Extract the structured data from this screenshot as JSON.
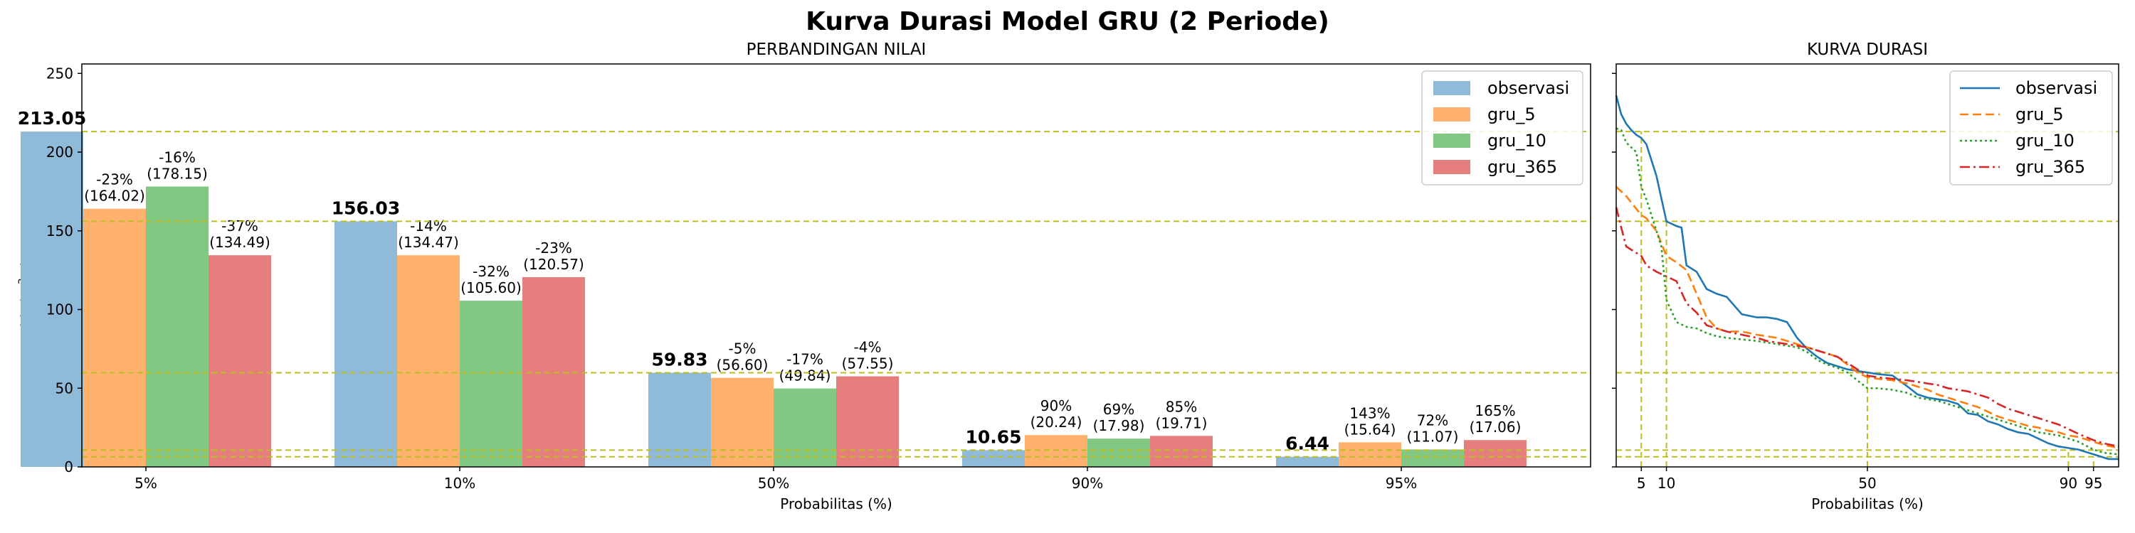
{
  "figure": {
    "title": "Kurva Durasi Model GRU (2 Periode)"
  },
  "colors": {
    "observasi": "#8fbbd9",
    "gru_5": "#ffb26e",
    "gru_10": "#82c782",
    "gru_365": "#e77e7e",
    "line_observasi": "#1f77b4",
    "line_gru_5": "#ff7f0e",
    "line_gru_10": "#2ca02c",
    "line_gru_365": "#d62728",
    "refline": "#bcbd22"
  },
  "chart_data": [
    {
      "type": "bar",
      "title": "PERBANDINGAN NILAI",
      "xlabel": "Probabilitas (%)",
      "ylabel": "Debit (m³/s)",
      "ylim": [
        0,
        256
      ],
      "yticks": [
        0,
        50,
        100,
        150,
        200,
        250
      ],
      "categories": [
        "5%",
        "10%",
        "50%",
        "90%",
        "95%"
      ],
      "legend": "top-right",
      "series": [
        {
          "name": "observasi",
          "values": [
            213.05,
            156.03,
            59.83,
            10.65,
            6.44
          ],
          "labels": [
            "213.05",
            "156.03",
            "59.83",
            "10.65",
            "6.44"
          ]
        },
        {
          "name": "gru_5",
          "values": [
            164.02,
            134.47,
            56.6,
            20.24,
            15.64
          ],
          "labels": [
            [
              "-23%",
              "(164.02)"
            ],
            [
              "-14%",
              "(134.47)"
            ],
            [
              "-5%",
              "(56.60)"
            ],
            [
              "90%",
              "(20.24)"
            ],
            [
              "143%",
              "(15.64)"
            ]
          ]
        },
        {
          "name": "gru_10",
          "values": [
            178.15,
            105.6,
            49.84,
            17.98,
            11.07
          ],
          "labels": [
            [
              "-16%",
              "(178.15)"
            ],
            [
              "-32%",
              "(105.60)"
            ],
            [
              "-17%",
              "(49.84)"
            ],
            [
              "69%",
              "(17.98)"
            ],
            [
              "72%",
              "(11.07)"
            ]
          ]
        },
        {
          "name": "gru_365",
          "values": [
            134.49,
            120.57,
            57.55,
            19.71,
            17.06
          ],
          "labels": [
            [
              "-37%",
              "(134.49)"
            ],
            [
              "-23%",
              "(120.57)"
            ],
            [
              "-4%",
              "(57.55)"
            ],
            [
              "85%",
              "(19.71)"
            ],
            [
              "165%",
              "(17.06)"
            ]
          ]
        }
      ],
      "reference_lines": [
        213.05,
        156.03,
        59.83,
        10.65,
        6.44
      ]
    },
    {
      "type": "line",
      "title": "KURVA DURASI",
      "xlabel": "Probabilitas (%)",
      "xlim": [
        0,
        100
      ],
      "ylim": [
        0,
        256
      ],
      "xticks": [
        5,
        10,
        50,
        90,
        95
      ],
      "legend": "top-right",
      "series": [
        {
          "name": "observasi",
          "style": "solid",
          "x": [
            0,
            1,
            2,
            3,
            4,
            5,
            6,
            8,
            10,
            12,
            13,
            14,
            16,
            18,
            20,
            22,
            25,
            28,
            30,
            32,
            34,
            36,
            38,
            40,
            42,
            44,
            46,
            48,
            50,
            52,
            55,
            58,
            60,
            62,
            64,
            66,
            68,
            70,
            72,
            74,
            76,
            78,
            80,
            82,
            84,
            86,
            88,
            90,
            92,
            93,
            95,
            97,
            98,
            100
          ],
          "y": [
            236,
            224,
            218,
            214,
            211,
            209,
            205,
            185,
            156,
            153,
            152,
            128,
            124,
            113,
            110,
            108,
            97,
            95,
            95,
            94,
            92,
            82,
            75,
            70,
            66,
            64,
            62,
            61,
            60,
            59,
            58,
            51,
            46,
            44,
            43,
            42,
            40,
            34,
            33,
            29,
            27,
            24,
            22,
            21,
            18,
            15,
            13,
            12,
            11,
            10,
            8,
            6,
            5,
            5
          ]
        },
        {
          "name": "gru_5",
          "style": "dashed",
          "x": [
            0,
            2,
            4,
            5,
            6,
            8,
            10,
            12,
            14,
            16,
            18,
            20,
            22,
            25,
            28,
            30,
            32,
            34,
            36,
            38,
            40,
            42,
            44,
            46,
            48,
            50,
            52,
            55,
            58,
            60,
            62,
            64,
            66,
            68,
            70,
            72,
            74,
            76,
            78,
            80,
            82,
            84,
            86,
            88,
            90,
            92,
            95,
            97,
            100
          ],
          "y": [
            178,
            172,
            164,
            160,
            158,
            150,
            134,
            130,
            125,
            110,
            95,
            88,
            86,
            86,
            84,
            83,
            82,
            80,
            78,
            76,
            74,
            72,
            70,
            65,
            60,
            57,
            56,
            55,
            53,
            51,
            49,
            46,
            44,
            42,
            40,
            38,
            35,
            32,
            30,
            28,
            26,
            25,
            23,
            22,
            20,
            19,
            16,
            14,
            12
          ]
        },
        {
          "name": "gru_10",
          "style": "dotted",
          "x": [
            0,
            1,
            2,
            4,
            5,
            6,
            8,
            9,
            10,
            12,
            14,
            16,
            18,
            20,
            22,
            25,
            28,
            30,
            32,
            34,
            36,
            38,
            40,
            42,
            44,
            46,
            48,
            50,
            52,
            55,
            58,
            60,
            62,
            64,
            66,
            68,
            70,
            72,
            74,
            76,
            78,
            80,
            82,
            84,
            86,
            88,
            90,
            92,
            95,
            97,
            100
          ],
          "y": [
            215,
            214,
            206,
            200,
            178,
            170,
            150,
            140,
            106,
            92,
            89,
            88,
            85,
            83,
            82,
            81,
            80,
            79,
            78,
            77,
            76,
            73,
            68,
            65,
            63,
            60,
            55,
            50,
            50,
            49,
            47,
            44,
            43,
            42,
            40,
            38,
            36,
            34,
            32,
            30,
            28,
            26,
            24,
            22,
            21,
            20,
            18,
            16,
            11,
            9,
            8
          ]
        },
        {
          "name": "gru_365",
          "style": "dashdot",
          "x": [
            0,
            1,
            2,
            4,
            5,
            6,
            8,
            10,
            12,
            14,
            16,
            18,
            20,
            22,
            25,
            28,
            30,
            32,
            34,
            36,
            38,
            40,
            42,
            44,
            46,
            48,
            50,
            52,
            55,
            58,
            60,
            62,
            64,
            66,
            68,
            70,
            72,
            74,
            76,
            78,
            80,
            82,
            84,
            86,
            88,
            90,
            92,
            95,
            97,
            100
          ],
          "y": [
            165,
            152,
            140,
            136,
            134,
            128,
            124,
            121,
            118,
            104,
            98,
            90,
            88,
            86,
            84,
            82,
            80,
            79,
            78,
            77,
            76,
            74,
            72,
            70,
            66,
            62,
            58,
            57,
            56,
            55,
            54,
            53,
            52,
            50,
            49,
            48,
            46,
            44,
            40,
            37,
            35,
            33,
            31,
            29,
            27,
            24,
            21,
            17,
            15,
            13
          ]
        }
      ],
      "reference_lines": [
        213.05,
        156.03,
        59.83,
        10.65,
        6.44
      ],
      "reference_verticals": [
        5,
        10,
        50,
        90,
        95
      ]
    }
  ]
}
